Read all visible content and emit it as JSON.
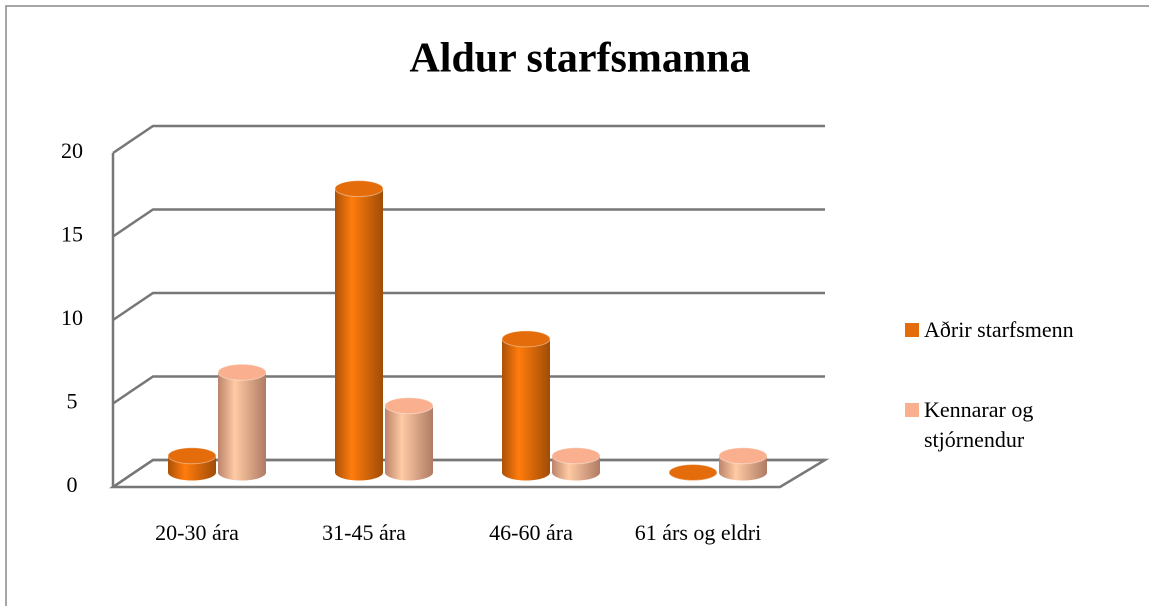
{
  "chart_data": {
    "type": "bar3d",
    "title": "Aldur starfsmanna",
    "categories": [
      "20-30 ára",
      "31-45 ára",
      "46-60 ára",
      "61 árs og eldri"
    ],
    "series": [
      {
        "name": "Aðrir starfsmenn",
        "color": "#e46c0a",
        "values": [
          1,
          17,
          8,
          0
        ]
      },
      {
        "name": "Kennarar og stjórnendur",
        "color": "#fab08f",
        "values": [
          6,
          4,
          1,
          1
        ]
      }
    ],
    "ylim": [
      0,
      20
    ],
    "yticks": [
      0,
      5,
      10,
      15,
      20
    ],
    "grid": true,
    "legend": "right"
  }
}
